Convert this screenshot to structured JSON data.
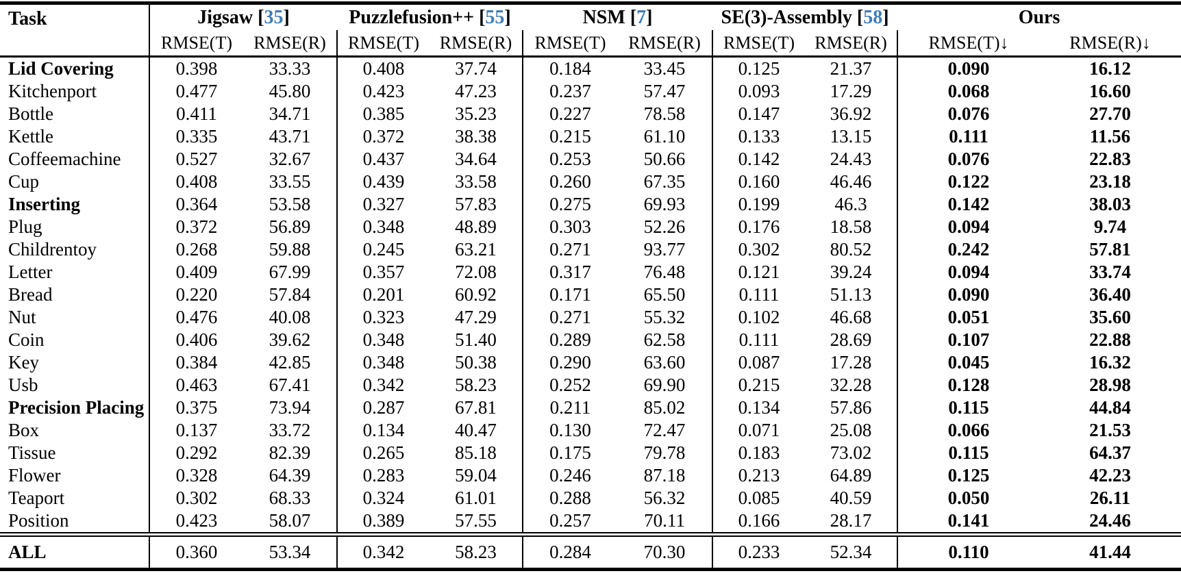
{
  "colors": {
    "citation_blue": "#3e7cb8",
    "text": "#000000",
    "background": "#ffffff"
  },
  "header": {
    "task_label": "Task",
    "groups": [
      {
        "name": "Jigsaw",
        "cite_prefix": " [",
        "cite_num": "35",
        "cite_suffix": "]",
        "cols": [
          "RMSE(T)",
          "RMSE(R)"
        ]
      },
      {
        "name": "Puzzlefusion++",
        "cite_prefix": " [",
        "cite_num": "55",
        "cite_suffix": "]",
        "cols": [
          "RMSE(T)",
          "RMSE(R)"
        ]
      },
      {
        "name": "NSM",
        "cite_prefix": " [",
        "cite_num": "7",
        "cite_suffix": "]",
        "cols": [
          "RMSE(T)",
          "RMSE(R)"
        ]
      },
      {
        "name": "SE(3)-Assembly",
        "cite_prefix": " [",
        "cite_num": "58",
        "cite_suffix": "]",
        "cols": [
          "RMSE(T)",
          "RMSE(R)"
        ]
      },
      {
        "name": "Ours",
        "cite_prefix": "",
        "cite_num": "",
        "cite_suffix": "",
        "cols": [
          "RMSE(T)↓",
          "RMSE(R)↓"
        ]
      }
    ]
  },
  "rows": [
    {
      "task": "Lid Covering",
      "bold": true,
      "values": [
        "0.398",
        "33.33",
        "0.408",
        "37.74",
        "0.184",
        "33.45",
        "0.125",
        "21.37",
        "0.090",
        "16.12"
      ]
    },
    {
      "task": "Kitchenport",
      "bold": false,
      "values": [
        "0.477",
        "45.80",
        "0.423",
        "47.23",
        "0.237",
        "57.47",
        "0.093",
        "17.29",
        "0.068",
        "16.60"
      ]
    },
    {
      "task": "Bottle",
      "bold": false,
      "values": [
        "0.411",
        "34.71",
        "0.385",
        "35.23",
        "0.227",
        "78.58",
        "0.147",
        "36.92",
        "0.076",
        "27.70"
      ]
    },
    {
      "task": "Kettle",
      "bold": false,
      "values": [
        "0.335",
        "43.71",
        "0.372",
        "38.38",
        "0.215",
        "61.10",
        "0.133",
        "13.15",
        "0.111",
        "11.56"
      ]
    },
    {
      "task": "Coffeemachine",
      "bold": false,
      "values": [
        "0.527",
        "32.67",
        "0.437",
        "34.64",
        "0.253",
        "50.66",
        "0.142",
        "24.43",
        "0.076",
        "22.83"
      ]
    },
    {
      "task": "Cup",
      "bold": false,
      "values": [
        "0.408",
        "33.55",
        "0.439",
        "33.58",
        "0.260",
        "67.35",
        "0.160",
        "46.46",
        "0.122",
        "23.18"
      ]
    },
    {
      "task": "Inserting",
      "bold": true,
      "values": [
        "0.364",
        "53.58",
        "0.327",
        "57.83",
        "0.275",
        "69.93",
        "0.199",
        "46.3",
        "0.142",
        "38.03"
      ]
    },
    {
      "task": "Plug",
      "bold": false,
      "values": [
        "0.372",
        "56.89",
        "0.348",
        "48.89",
        "0.303",
        "52.26",
        "0.176",
        "18.58",
        "0.094",
        "9.74"
      ]
    },
    {
      "task": "Childrentoy",
      "bold": false,
      "values": [
        "0.268",
        "59.88",
        "0.245",
        "63.21",
        "0.271",
        "93.77",
        "0.302",
        "80.52",
        "0.242",
        "57.81"
      ]
    },
    {
      "task": "Letter",
      "bold": false,
      "values": [
        "0.409",
        "67.99",
        "0.357",
        "72.08",
        "0.317",
        "76.48",
        "0.121",
        "39.24",
        "0.094",
        "33.74"
      ]
    },
    {
      "task": "Bread",
      "bold": false,
      "values": [
        "0.220",
        "57.84",
        "0.201",
        "60.92",
        "0.171",
        "65.50",
        "0.111",
        "51.13",
        "0.090",
        "36.40"
      ]
    },
    {
      "task": "Nut",
      "bold": false,
      "values": [
        "0.476",
        "40.08",
        "0.323",
        "47.29",
        "0.271",
        "55.32",
        "0.102",
        "46.68",
        "0.051",
        "35.60"
      ]
    },
    {
      "task": "Coin",
      "bold": false,
      "values": [
        "0.406",
        "39.62",
        "0.348",
        "51.40",
        "0.289",
        "62.58",
        "0.111",
        "28.69",
        "0.107",
        "22.88"
      ]
    },
    {
      "task": "Key",
      "bold": false,
      "values": [
        "0.384",
        "42.85",
        "0.348",
        "50.38",
        "0.290",
        "63.60",
        "0.087",
        "17.28",
        "0.045",
        "16.32"
      ]
    },
    {
      "task": "Usb",
      "bold": false,
      "values": [
        "0.463",
        "67.41",
        "0.342",
        "58.23",
        "0.252",
        "69.90",
        "0.215",
        "32.28",
        "0.128",
        "28.98"
      ]
    },
    {
      "task": "Precision Placing",
      "bold": true,
      "values": [
        "0.375",
        "73.94",
        "0.287",
        "67.81",
        "0.211",
        "85.02",
        "0.134",
        "57.86",
        "0.115",
        "44.84"
      ]
    },
    {
      "task": "Box",
      "bold": false,
      "values": [
        "0.137",
        "33.72",
        "0.134",
        "40.47",
        "0.130",
        "72.47",
        "0.071",
        "25.08",
        "0.066",
        "21.53"
      ]
    },
    {
      "task": "Tissue",
      "bold": false,
      "values": [
        "0.292",
        "82.39",
        "0.265",
        "85.18",
        "0.175",
        "79.78",
        "0.183",
        "73.02",
        "0.115",
        "64.37"
      ]
    },
    {
      "task": "Flower",
      "bold": false,
      "values": [
        "0.328",
        "64.39",
        "0.283",
        "59.04",
        "0.246",
        "87.18",
        "0.213",
        "64.89",
        "0.125",
        "42.23"
      ]
    },
    {
      "task": "Teaport",
      "bold": false,
      "values": [
        "0.302",
        "68.33",
        "0.324",
        "61.01",
        "0.288",
        "56.32",
        "0.085",
        "40.59",
        "0.050",
        "26.11"
      ]
    },
    {
      "task": "Position",
      "bold": false,
      "values": [
        "0.423",
        "58.07",
        "0.389",
        "57.55",
        "0.257",
        "70.11",
        "0.166",
        "28.17",
        "0.141",
        "24.46"
      ]
    }
  ],
  "footer_row": {
    "task": "ALL",
    "bold": true,
    "values": [
      "0.360",
      "53.34",
      "0.342",
      "58.23",
      "0.284",
      "70.30",
      "0.233",
      "52.34",
      "0.110",
      "41.44"
    ]
  }
}
